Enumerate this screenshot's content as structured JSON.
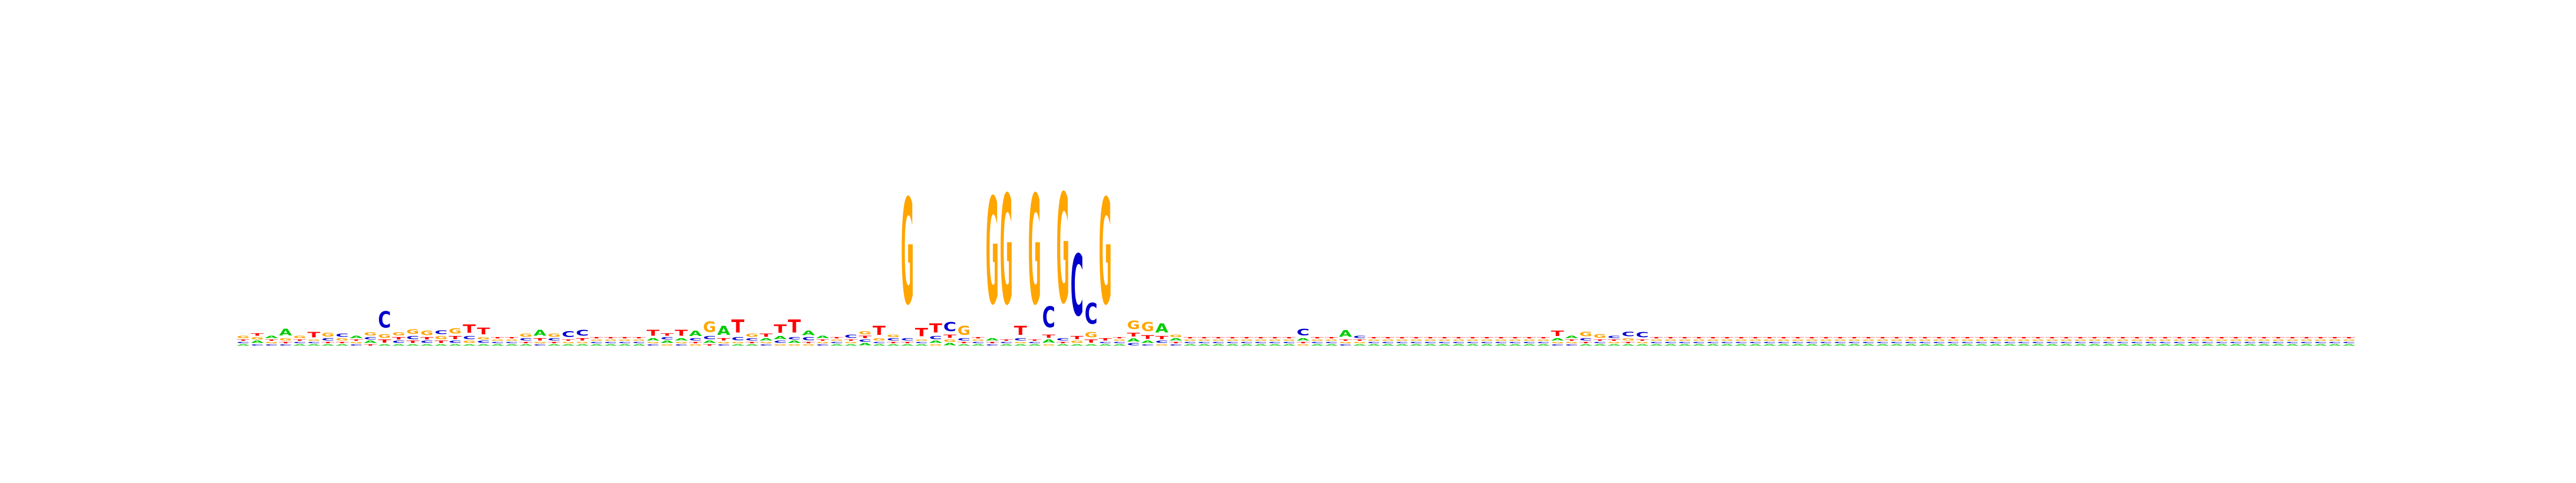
{
  "chart_data": {
    "type": "sequence-logo",
    "alphabet": [
      "A",
      "C",
      "G",
      "T"
    ],
    "colors": {
      "A": "#00cc00",
      "C": "#0000cc",
      "G": "#ffa500",
      "T": "#ff0000"
    },
    "ylim": [
      0,
      2
    ],
    "axes_visible": false,
    "positions": [
      {
        "A": 0.02,
        "C": 0.02,
        "G": 0.03,
        "T": 0.02
      },
      {
        "A": 0.03,
        "C": 0.02,
        "G": 0.03,
        "T": 0.03
      },
      {
        "A": 0.03,
        "C": 0.02,
        "G": 0.02,
        "T": 0.02
      },
      {
        "A": 0.09,
        "C": 0.02,
        "G": 0.03,
        "T": 0.02
      },
      {
        "A": 0.02,
        "C": 0.02,
        "G": 0.03,
        "T": 0.02
      },
      {
        "A": 0.02,
        "C": 0.02,
        "G": 0.02,
        "T": 0.07
      },
      {
        "A": 0.02,
        "C": 0.03,
        "G": 0.05,
        "T": 0.02
      },
      {
        "A": 0.02,
        "C": 0.04,
        "G": 0.03,
        "T": 0.02
      },
      {
        "A": 0.03,
        "C": 0.02,
        "G": 0.02,
        "T": 0.02
      },
      {
        "A": 0.03,
        "C": 0.03,
        "G": 0.04,
        "T": 0.02
      },
      {
        "A": 0.02,
        "C": 0.22,
        "G": 0.05,
        "T": 0.04
      },
      {
        "A": 0.02,
        "C": 0.03,
        "G": 0.04,
        "T": 0.03
      },
      {
        "A": 0.02,
        "C": 0.04,
        "G": 0.06,
        "T": 0.03
      },
      {
        "A": 0.02,
        "C": 0.03,
        "G": 0.06,
        "T": 0.03
      },
      {
        "A": 0.02,
        "C": 0.05,
        "G": 0.04,
        "T": 0.03
      },
      {
        "A": 0.02,
        "C": 0.03,
        "G": 0.07,
        "T": 0.04
      },
      {
        "A": 0.02,
        "C": 0.04,
        "G": 0.03,
        "T": 0.11
      },
      {
        "A": 0.02,
        "C": 0.03,
        "G": 0.03,
        "T": 0.09
      },
      {
        "A": 0.02,
        "C": 0.02,
        "G": 0.02,
        "T": 0.02
      },
      {
        "A": 0.02,
        "C": 0.02,
        "G": 0.02,
        "T": 0.02
      },
      {
        "A": 0.02,
        "C": 0.03,
        "G": 0.04,
        "T": 0.02
      },
      {
        "A": 0.08,
        "C": 0.02,
        "G": 0.02,
        "T": 0.03
      },
      {
        "A": 0.02,
        "C": 0.03,
        "G": 0.04,
        "T": 0.02
      },
      {
        "A": 0.02,
        "C": 0.08,
        "G": 0.02,
        "T": 0.02
      },
      {
        "A": 0.02,
        "C": 0.08,
        "G": 0.02,
        "T": 0.03
      },
      {
        "A": 0.02,
        "C": 0.02,
        "G": 0.02,
        "T": 0.02
      },
      {
        "A": 0.02,
        "C": 0.02,
        "G": 0.02,
        "T": 0.02
      },
      {
        "A": 0.02,
        "C": 0.02,
        "G": 0.02,
        "T": 0.02
      },
      {
        "A": 0.02,
        "C": 0.02,
        "G": 0.02,
        "T": 0.02
      },
      {
        "A": 0.03,
        "C": 0.02,
        "G": 0.02,
        "T": 0.08
      },
      {
        "A": 0.03,
        "C": 0.03,
        "G": 0.02,
        "T": 0.03
      },
      {
        "A": 0.03,
        "C": 0.02,
        "G": 0.02,
        "T": 0.08
      },
      {
        "A": 0.07,
        "C": 0.03,
        "G": 0.02,
        "T": 0.02
      },
      {
        "A": 0.03,
        "C": 0.04,
        "G": 0.14,
        "T": 0.02
      },
      {
        "A": 0.12,
        "C": 0.02,
        "G": 0.02,
        "T": 0.03
      },
      {
        "A": 0.02,
        "C": 0.04,
        "G": 0.02,
        "T": 0.17
      },
      {
        "A": 0.02,
        "C": 0.03,
        "G": 0.04,
        "T": 0.02
      },
      {
        "A": 0.03,
        "C": 0.02,
        "G": 0.02,
        "T": 0.04
      },
      {
        "A": 0.04,
        "C": 0.03,
        "G": 0.02,
        "T": 0.11
      },
      {
        "A": 0.03,
        "C": 0.03,
        "G": 0.02,
        "T": 0.17
      },
      {
        "A": 0.06,
        "C": 0.04,
        "G": 0.02,
        "T": 0.02
      },
      {
        "A": 0.03,
        "C": 0.02,
        "G": 0.02,
        "T": 0.02
      },
      {
        "A": 0.02,
        "C": 0.02,
        "G": 0.02,
        "T": 0.02
      },
      {
        "A": 0.02,
        "C": 0.04,
        "G": 0.02,
        "T": 0.02
      },
      {
        "A": 0.03,
        "C": 0.03,
        "G": 0.04,
        "T": 0.03
      },
      {
        "A": 0.02,
        "C": 0.02,
        "G": 0.03,
        "T": 0.12
      },
      {
        "A": 0.02,
        "C": 0.03,
        "G": 0.03,
        "T": 0.02
      },
      {
        "A": 0.02,
        "C": 0.03,
        "G": 1.41,
        "T": 0.02
      },
      {
        "A": 0.02,
        "C": 0.02,
        "G": 0.02,
        "T": 0.11
      },
      {
        "A": 0.03,
        "C": 0.04,
        "G": 0.02,
        "T": 0.12
      },
      {
        "A": 0.03,
        "C": 0.12,
        "G": 0.03,
        "T": 0.04
      },
      {
        "A": 0.02,
        "C": 0.03,
        "G": 0.12,
        "T": 0.02
      },
      {
        "A": 0.02,
        "C": 0.02,
        "G": 0.02,
        "T": 0.02
      },
      {
        "A": 0.03,
        "C": 0.02,
        "G": 1.42,
        "T": 0.02
      },
      {
        "A": 0.02,
        "C": 0.02,
        "G": 1.46,
        "T": 0.02
      },
      {
        "A": 0.02,
        "C": 0.03,
        "G": 0.02,
        "T": 0.12
      },
      {
        "A": 0.02,
        "C": 0.02,
        "G": 1.46,
        "T": 0.02
      },
      {
        "A": 0.04,
        "C": 0.28,
        "G": 0.02,
        "T": 0.04
      },
      {
        "A": 0.02,
        "C": 0.03,
        "G": 1.46,
        "T": 0.02
      },
      {
        "A": 0.02,
        "C": 0.82,
        "G": 0.03,
        "T": 0.04
      },
      {
        "A": 0.02,
        "C": 0.28,
        "G": 0.07,
        "T": 0.04
      },
      {
        "A": 0.02,
        "C": 0.02,
        "G": 1.41,
        "T": 0.03
      },
      {
        "A": 0.02,
        "C": 0.02,
        "G": 0.02,
        "T": 0.02
      },
      {
        "A": 0.04,
        "C": 0.03,
        "G": 0.11,
        "T": 0.05
      },
      {
        "A": 0.03,
        "C": 0.02,
        "G": 0.12,
        "T": 0.05
      },
      {
        "A": 0.12,
        "C": 0.03,
        "G": 0.02,
        "T": 0.04
      },
      {
        "A": 0.03,
        "C": 0.02,
        "G": 0.03,
        "T": 0.02
      },
      {
        "A": 0.02,
        "C": 0.02,
        "G": 0.02,
        "T": 0.02
      },
      {
        "A": 0.02,
        "C": 0.02,
        "G": 0.02,
        "T": 0.02
      },
      {
        "A": 0.02,
        "C": 0.02,
        "G": 0.02,
        "T": 0.02
      },
      {
        "A": 0.02,
        "C": 0.02,
        "G": 0.02,
        "T": 0.02
      },
      {
        "A": 0.02,
        "C": 0.02,
        "G": 0.02,
        "T": 0.02
      },
      {
        "A": 0.02,
        "C": 0.02,
        "G": 0.02,
        "T": 0.02
      },
      {
        "A": 0.02,
        "C": 0.02,
        "G": 0.02,
        "T": 0.02
      },
      {
        "A": 0.02,
        "C": 0.02,
        "G": 0.02,
        "T": 0.02
      },
      {
        "A": 0.03,
        "C": 0.09,
        "G": 0.02,
        "T": 0.02
      },
      {
        "A": 0.02,
        "C": 0.02,
        "G": 0.02,
        "T": 0.02
      },
      {
        "A": 0.02,
        "C": 0.02,
        "G": 0.02,
        "T": 0.02
      },
      {
        "A": 0.09,
        "C": 0.02,
        "G": 0.02,
        "T": 0.02
      },
      {
        "A": 0.02,
        "C": 0.03,
        "G": 0.02,
        "T": 0.02
      },
      {
        "A": 0.02,
        "C": 0.02,
        "G": 0.02,
        "T": 0.02
      },
      {
        "A": 0.02,
        "C": 0.02,
        "G": 0.02,
        "T": 0.02
      },
      {
        "A": 0.02,
        "C": 0.02,
        "G": 0.02,
        "T": 0.02
      },
      {
        "A": 0.02,
        "C": 0.02,
        "G": 0.02,
        "T": 0.02
      },
      {
        "A": 0.02,
        "C": 0.02,
        "G": 0.02,
        "T": 0.02
      },
      {
        "A": 0.02,
        "C": 0.02,
        "G": 0.02,
        "T": 0.02
      },
      {
        "A": 0.02,
        "C": 0.02,
        "G": 0.02,
        "T": 0.02
      },
      {
        "A": 0.02,
        "C": 0.02,
        "G": 0.02,
        "T": 0.02
      },
      {
        "A": 0.02,
        "C": 0.02,
        "G": 0.02,
        "T": 0.02
      },
      {
        "A": 0.02,
        "C": 0.02,
        "G": 0.02,
        "T": 0.02
      },
      {
        "A": 0.02,
        "C": 0.02,
        "G": 0.02,
        "T": 0.02
      },
      {
        "A": 0.02,
        "C": 0.02,
        "G": 0.02,
        "T": 0.02
      },
      {
        "A": 0.02,
        "C": 0.02,
        "G": 0.02,
        "T": 0.02
      },
      {
        "A": 0.03,
        "C": 0.02,
        "G": 0.02,
        "T": 0.07
      },
      {
        "A": 0.03,
        "C": 0.02,
        "G": 0.02,
        "T": 0.02
      },
      {
        "A": 0.02,
        "C": 0.03,
        "G": 0.06,
        "T": 0.02
      },
      {
        "A": 0.02,
        "C": 0.02,
        "G": 0.05,
        "T": 0.02
      },
      {
        "A": 0.02,
        "C": 0.03,
        "G": 0.02,
        "T": 0.02
      },
      {
        "A": 0.02,
        "C": 0.06,
        "G": 0.03,
        "T": 0.02
      },
      {
        "A": 0.02,
        "C": 0.07,
        "G": 0.02,
        "T": 0.02
      },
      {
        "A": 0.02,
        "C": 0.02,
        "G": 0.02,
        "T": 0.02
      },
      {
        "A": 0.02,
        "C": 0.02,
        "G": 0.02,
        "T": 0.02
      },
      {
        "A": 0.02,
        "C": 0.02,
        "G": 0.02,
        "T": 0.02
      },
      {
        "A": 0.02,
        "C": 0.02,
        "G": 0.02,
        "T": 0.02
      },
      {
        "A": 0.02,
        "C": 0.02,
        "G": 0.02,
        "T": 0.02
      },
      {
        "A": 0.02,
        "C": 0.02,
        "G": 0.02,
        "T": 0.02
      },
      {
        "A": 0.02,
        "C": 0.02,
        "G": 0.02,
        "T": 0.02
      },
      {
        "A": 0.02,
        "C": 0.02,
        "G": 0.02,
        "T": 0.02
      },
      {
        "A": 0.02,
        "C": 0.02,
        "G": 0.02,
        "T": 0.02
      },
      {
        "A": 0.02,
        "C": 0.02,
        "G": 0.02,
        "T": 0.02
      },
      {
        "A": 0.02,
        "C": 0.02,
        "G": 0.02,
        "T": 0.02
      },
      {
        "A": 0.02,
        "C": 0.02,
        "G": 0.02,
        "T": 0.02
      },
      {
        "A": 0.02,
        "C": 0.02,
        "G": 0.02,
        "T": 0.02
      },
      {
        "A": 0.02,
        "C": 0.02,
        "G": 0.02,
        "T": 0.02
      },
      {
        "A": 0.02,
        "C": 0.02,
        "G": 0.02,
        "T": 0.02
      },
      {
        "A": 0.02,
        "C": 0.02,
        "G": 0.02,
        "T": 0.02
      },
      {
        "A": 0.02,
        "C": 0.02,
        "G": 0.02,
        "T": 0.02
      },
      {
        "A": 0.02,
        "C": 0.02,
        "G": 0.02,
        "T": 0.02
      },
      {
        "A": 0.02,
        "C": 0.02,
        "G": 0.02,
        "T": 0.02
      },
      {
        "A": 0.02,
        "C": 0.02,
        "G": 0.02,
        "T": 0.02
      },
      {
        "A": 0.02,
        "C": 0.02,
        "G": 0.02,
        "T": 0.02
      },
      {
        "A": 0.02,
        "C": 0.02,
        "G": 0.02,
        "T": 0.02
      },
      {
        "A": 0.02,
        "C": 0.02,
        "G": 0.02,
        "T": 0.02
      },
      {
        "A": 0.02,
        "C": 0.02,
        "G": 0.02,
        "T": 0.02
      },
      {
        "A": 0.02,
        "C": 0.02,
        "G": 0.02,
        "T": 0.02
      },
      {
        "A": 0.02,
        "C": 0.02,
        "G": 0.02,
        "T": 0.02
      },
      {
        "A": 0.02,
        "C": 0.02,
        "G": 0.02,
        "T": 0.02
      },
      {
        "A": 0.02,
        "C": 0.02,
        "G": 0.02,
        "T": 0.02
      },
      {
        "A": 0.02,
        "C": 0.02,
        "G": 0.02,
        "T": 0.02
      },
      {
        "A": 0.02,
        "C": 0.02,
        "G": 0.02,
        "T": 0.02
      },
      {
        "A": 0.02,
        "C": 0.02,
        "G": 0.02,
        "T": 0.02
      },
      {
        "A": 0.02,
        "C": 0.02,
        "G": 0.02,
        "T": 0.02
      },
      {
        "A": 0.02,
        "C": 0.02,
        "G": 0.02,
        "T": 0.02
      },
      {
        "A": 0.02,
        "C": 0.02,
        "G": 0.02,
        "T": 0.02
      },
      {
        "A": 0.02,
        "C": 0.02,
        "G": 0.02,
        "T": 0.02
      },
      {
        "A": 0.02,
        "C": 0.02,
        "G": 0.02,
        "T": 0.02
      },
      {
        "A": 0.02,
        "C": 0.02,
        "G": 0.02,
        "T": 0.02
      },
      {
        "A": 0.02,
        "C": 0.02,
        "G": 0.02,
        "T": 0.02
      },
      {
        "A": 0.02,
        "C": 0.02,
        "G": 0.02,
        "T": 0.02
      },
      {
        "A": 0.02,
        "C": 0.02,
        "G": 0.02,
        "T": 0.02
      },
      {
        "A": 0.02,
        "C": 0.02,
        "G": 0.02,
        "T": 0.02
      },
      {
        "A": 0.02,
        "C": 0.02,
        "G": 0.02,
        "T": 0.02
      },
      {
        "A": 0.02,
        "C": 0.02,
        "G": 0.02,
        "T": 0.02
      },
      {
        "A": 0.02,
        "C": 0.02,
        "G": 0.02,
        "T": 0.02
      },
      {
        "A": 0.02,
        "C": 0.02,
        "G": 0.02,
        "T": 0.02
      },
      {
        "A": 0.02,
        "C": 0.02,
        "G": 0.02,
        "T": 0.02
      },
      {
        "A": 0.02,
        "C": 0.02,
        "G": 0.02,
        "T": 0.02
      },
      {
        "A": 0.02,
        "C": 0.02,
        "G": 0.02,
        "T": 0.02
      },
      {
        "A": 0.02,
        "C": 0.02,
        "G": 0.02,
        "T": 0.02
      },
      {
        "A": 0.02,
        "C": 0.02,
        "G": 0.02,
        "T": 0.02
      }
    ]
  }
}
